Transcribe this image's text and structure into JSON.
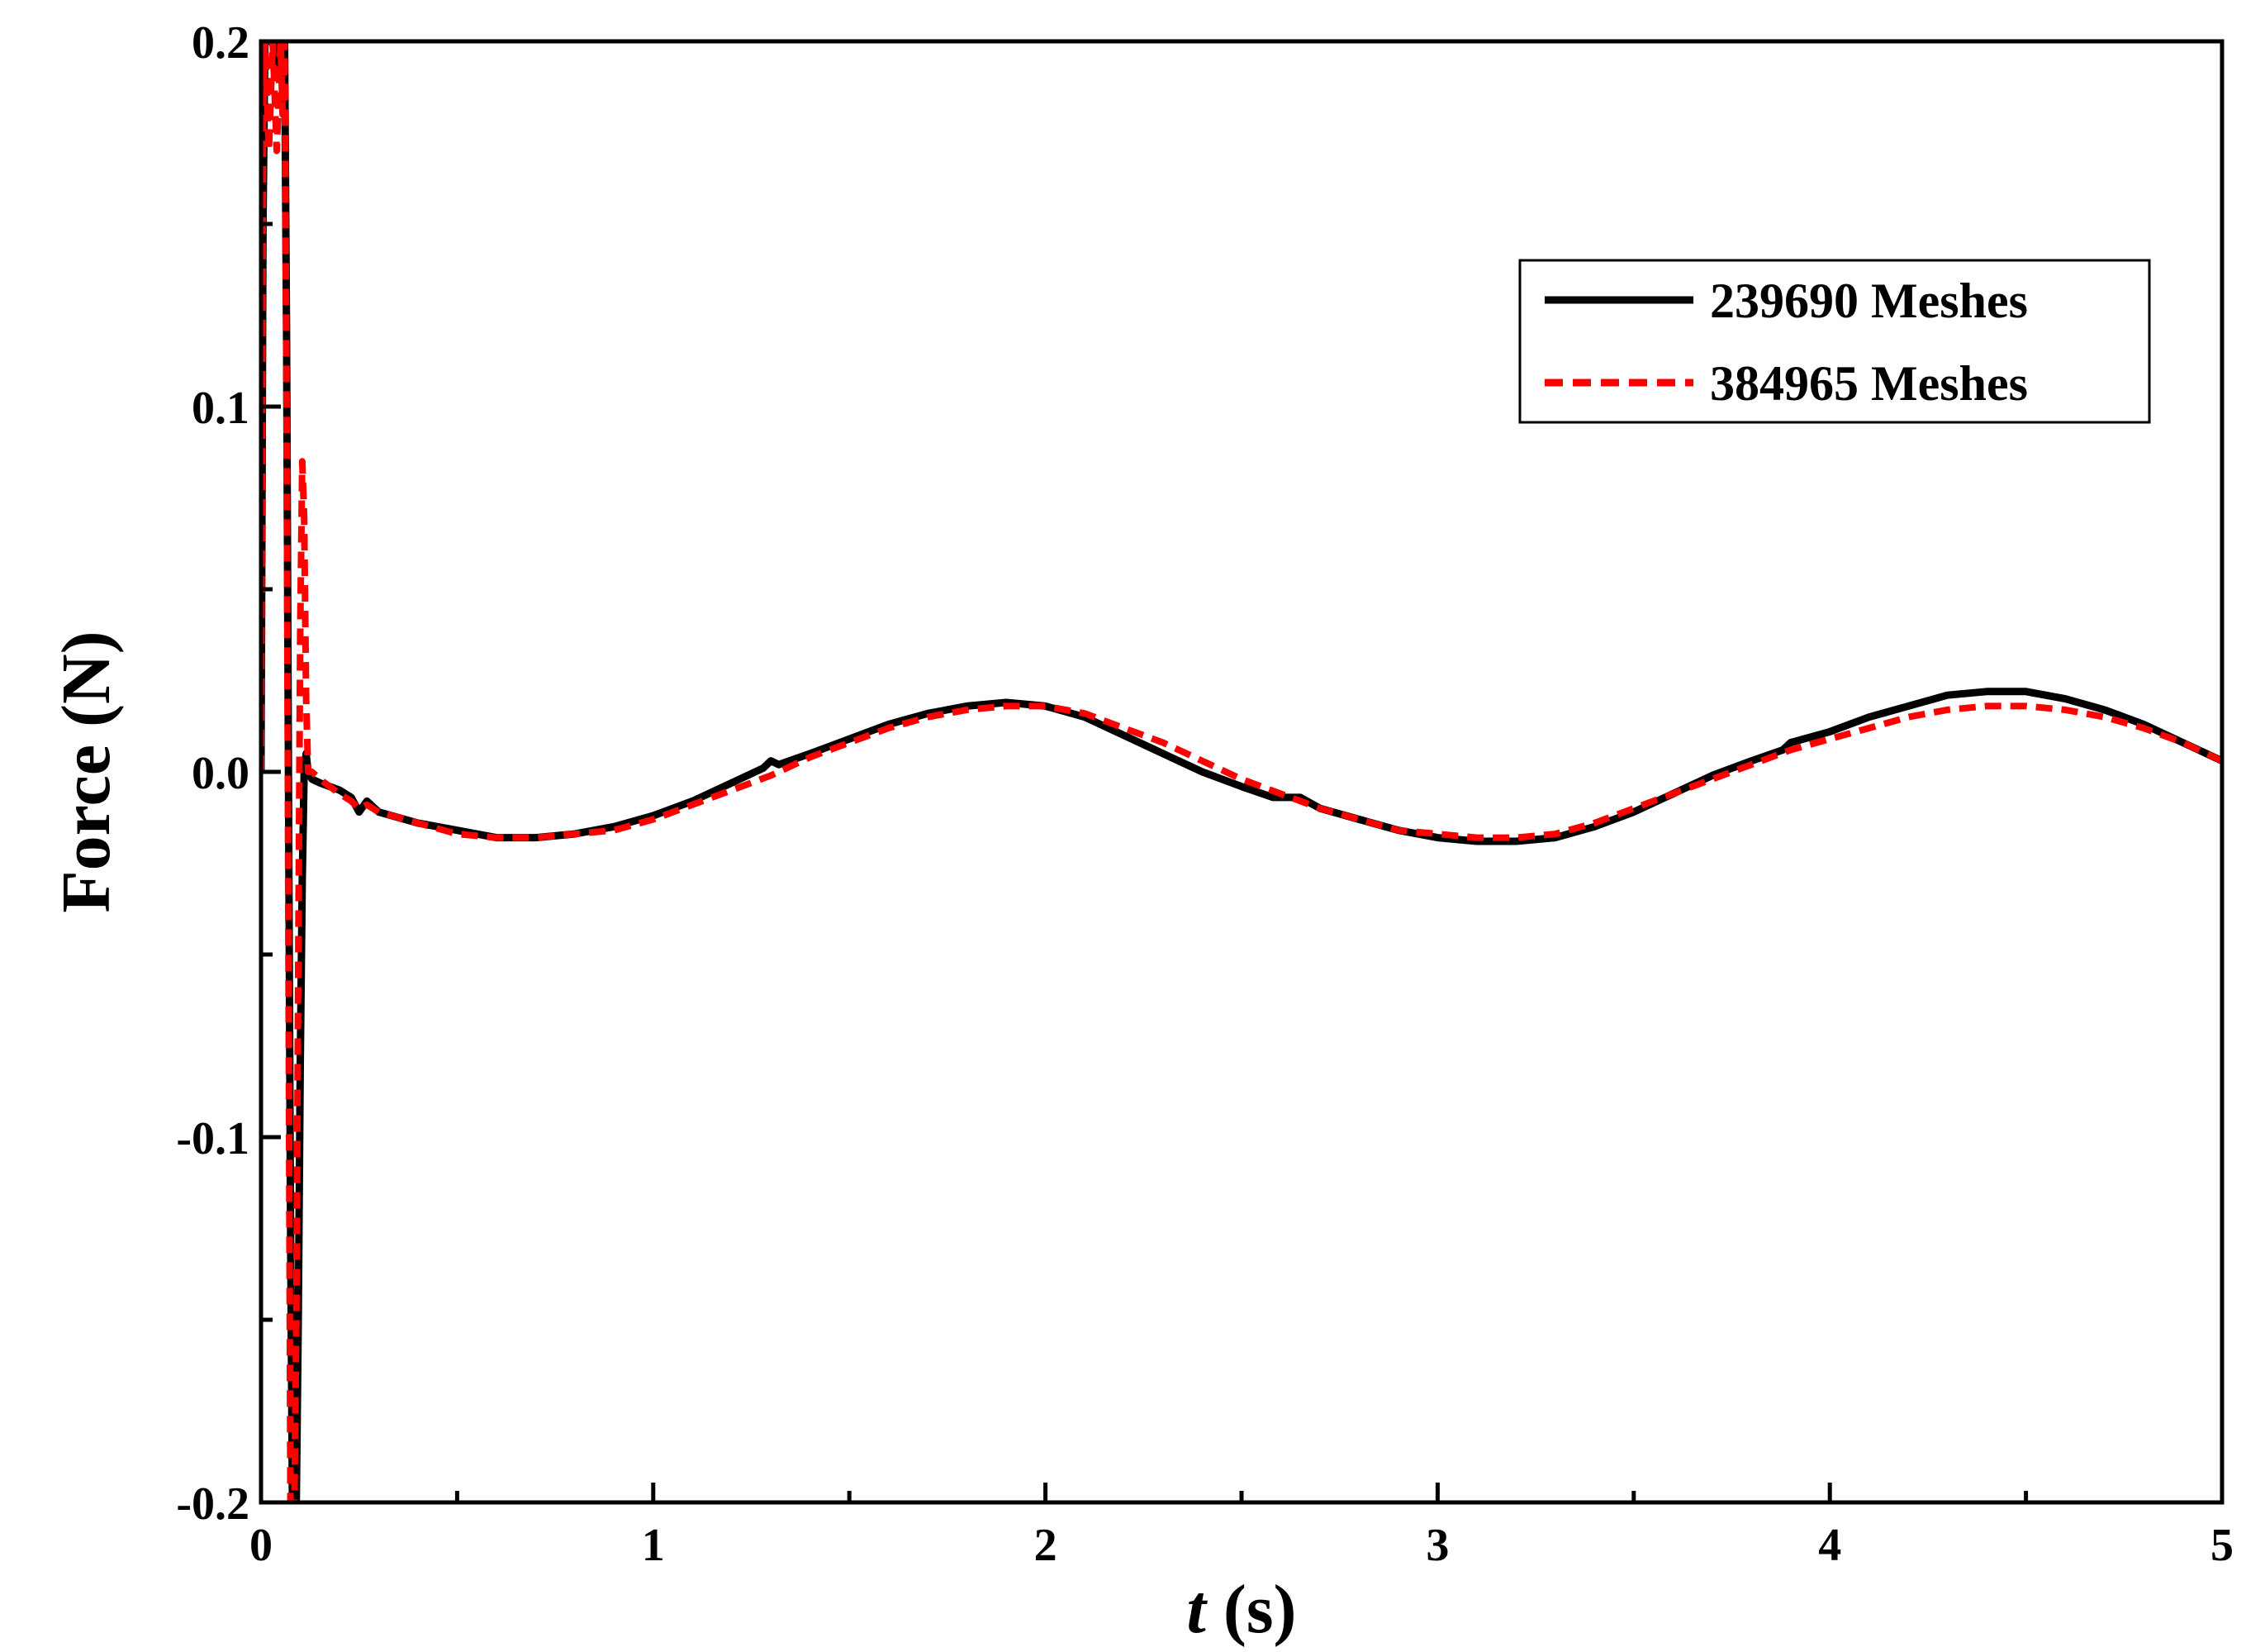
{
  "chart_data": {
    "type": "line",
    "xlabel_var": "t",
    "xlabel_unit": " (s)",
    "ylabel": "Force (N)",
    "xlim": [
      0,
      5
    ],
    "ylim": [
      -0.2,
      0.2
    ],
    "x_ticks": [
      0,
      1,
      2,
      3,
      4,
      5
    ],
    "x_tick_labels": [
      "0",
      "1",
      "2",
      "3",
      "4",
      "5"
    ],
    "y_ticks": [
      -0.2,
      -0.1,
      0.0,
      0.1,
      0.2
    ],
    "y_tick_labels": [
      "-0.2",
      "-0.1",
      "0.0",
      "0.1",
      "0.2"
    ],
    "grid": false,
    "legend_position": "top-right",
    "series": [
      {
        "name": "239690 Meshes",
        "color": "#000000",
        "style": "solid",
        "x": [
          0.0,
          0.005,
          0.01,
          0.02,
          0.03,
          0.04,
          0.05,
          0.055,
          0.06,
          0.065,
          0.07,
          0.075,
          0.08,
          0.085,
          0.09,
          0.095,
          0.1,
          0.105,
          0.11,
          0.115,
          0.12,
          0.13,
          0.15,
          0.2,
          0.23,
          0.25,
          0.27,
          0.3,
          0.4,
          0.5,
          0.6,
          0.7,
          0.8,
          0.9,
          1.0,
          1.1,
          1.2,
          1.28,
          1.3,
          1.32,
          1.4,
          1.5,
          1.6,
          1.7,
          1.8,
          1.9,
          2.0,
          2.1,
          2.2,
          2.3,
          2.4,
          2.5,
          2.58,
          2.65,
          2.7,
          2.8,
          2.9,
          3.0,
          3.1,
          3.2,
          3.3,
          3.4,
          3.5,
          3.6,
          3.7,
          3.8,
          3.88,
          3.9,
          4.0,
          4.1,
          4.2,
          4.3,
          4.4,
          4.5,
          4.6,
          4.7,
          4.8,
          4.9,
          5.0
        ],
        "y": [
          0.0,
          0.15,
          0.2,
          0.2,
          0.2,
          0.19,
          0.2,
          0.2,
          0.2,
          0.12,
          0.0,
          -0.12,
          -0.2,
          -0.2,
          -0.2,
          -0.15,
          -0.08,
          -0.03,
          0.0,
          0.005,
          0.0,
          -0.002,
          -0.003,
          -0.005,
          -0.007,
          -0.011,
          -0.008,
          -0.011,
          -0.014,
          -0.016,
          -0.018,
          -0.018,
          -0.017,
          -0.015,
          -0.012,
          -0.008,
          -0.003,
          0.001,
          0.003,
          0.002,
          0.005,
          0.009,
          0.013,
          0.016,
          0.018,
          0.019,
          0.018,
          0.015,
          0.01,
          0.005,
          0.0,
          -0.004,
          -0.007,
          -0.007,
          -0.01,
          -0.013,
          -0.016,
          -0.018,
          -0.019,
          -0.019,
          -0.018,
          -0.015,
          -0.011,
          -0.006,
          -0.001,
          0.003,
          0.006,
          0.008,
          0.011,
          0.015,
          0.018,
          0.021,
          0.022,
          0.022,
          0.02,
          0.017,
          0.013,
          0.008,
          0.003
        ]
      },
      {
        "name": "384965 Meshes",
        "color": "#ff0000",
        "style": "dashed",
        "x": [
          0.0,
          0.005,
          0.01,
          0.02,
          0.03,
          0.04,
          0.05,
          0.055,
          0.06,
          0.065,
          0.07,
          0.075,
          0.08,
          0.085,
          0.09,
          0.095,
          0.1,
          0.105,
          0.11,
          0.115,
          0.12,
          0.13,
          0.15,
          0.2,
          0.23,
          0.25,
          0.27,
          0.3,
          0.4,
          0.5,
          0.6,
          0.7,
          0.8,
          0.9,
          1.0,
          1.1,
          1.2,
          1.3,
          1.4,
          1.5,
          1.6,
          1.7,
          1.8,
          1.9,
          2.0,
          2.1,
          2.2,
          2.3,
          2.4,
          2.5,
          2.6,
          2.7,
          2.8,
          2.9,
          3.0,
          3.1,
          3.2,
          3.3,
          3.4,
          3.5,
          3.6,
          3.7,
          3.8,
          3.9,
          4.0,
          4.1,
          4.2,
          4.3,
          4.4,
          4.5,
          4.6,
          4.7,
          4.8,
          4.9,
          5.0
        ],
        "y": [
          0.0,
          0.18,
          0.2,
          0.17,
          0.2,
          0.17,
          0.2,
          0.18,
          0.2,
          0.1,
          -0.05,
          -0.2,
          -0.2,
          -0.2,
          -0.15,
          -0.05,
          0.04,
          0.085,
          0.07,
          0.02,
          0.0,
          0.0,
          -0.002,
          -0.006,
          -0.008,
          -0.01,
          -0.009,
          -0.011,
          -0.014,
          -0.017,
          -0.018,
          -0.018,
          -0.017,
          -0.016,
          -0.013,
          -0.009,
          -0.005,
          -0.001,
          0.004,
          0.008,
          0.012,
          0.015,
          0.017,
          0.018,
          0.018,
          0.016,
          0.012,
          0.008,
          0.003,
          -0.002,
          -0.006,
          -0.01,
          -0.013,
          -0.016,
          -0.017,
          -0.018,
          -0.018,
          -0.017,
          -0.014,
          -0.01,
          -0.006,
          -0.002,
          0.002,
          0.006,
          0.009,
          0.012,
          0.015,
          0.017,
          0.018,
          0.018,
          0.017,
          0.015,
          0.012,
          0.008,
          0.003
        ]
      }
    ]
  }
}
